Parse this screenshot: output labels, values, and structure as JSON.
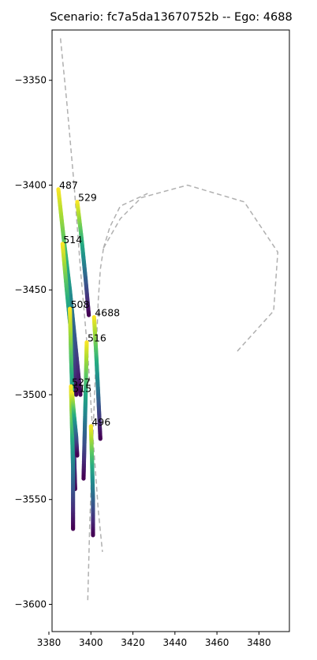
{
  "chart_data": {
    "type": "scatter",
    "title": "Scenario: fc7a5da13670752b -- Ego: 4688",
    "xlabel": "",
    "ylabel": "",
    "xlim": [
      3381.5,
      3494.5
    ],
    "ylim": [
      -3613,
      -3326
    ],
    "xticks": [
      3380,
      3400,
      3420,
      3440,
      3460,
      3480
    ],
    "yticks": [
      -3350,
      -3400,
      -3450,
      -3500,
      -3550,
      -3600
    ],
    "grid": false,
    "colormap": "viridis",
    "map_lines": [
      [
        [
          3385.5,
          -3330
        ],
        [
          3388.5,
          -3360
        ],
        [
          3392,
          -3400
        ],
        [
          3395,
          -3440
        ],
        [
          3398.5,
          -3480
        ],
        [
          3401,
          -3520
        ],
        [
          3403.5,
          -3555
        ],
        [
          3405.5,
          -3575
        ]
      ],
      [
        [
          3398.5,
          -3598
        ],
        [
          3399.5,
          -3560
        ],
        [
          3401,
          -3520
        ],
        [
          3402.5,
          -3480
        ],
        [
          3403.5,
          -3455
        ],
        [
          3404.5,
          -3440
        ],
        [
          3406,
          -3430
        ]
      ],
      [
        [
          3406,
          -3430
        ],
        [
          3409,
          -3420
        ],
        [
          3414,
          -3410
        ],
        [
          3427,
          -3404
        ]
      ],
      [
        [
          3406,
          -3430
        ],
        [
          3414,
          -3416
        ],
        [
          3424,
          -3406
        ],
        [
          3446,
          -3400
        ],
        [
          3473,
          -3408
        ],
        [
          3489,
          -3432
        ],
        [
          3487,
          -3460
        ],
        [
          3469,
          -3480
        ]
      ]
    ],
    "agents": [
      {
        "id": "487",
        "x": [
          3384.5,
          3387.0,
          3390.0,
          3392.5,
          3395.0
        ],
        "y": [
          -3402,
          -3425,
          -3450,
          -3475,
          -3500
        ]
      },
      {
        "id": "529",
        "x": [
          3393.5,
          3395.5,
          3397.5,
          3399.0
        ],
        "y": [
          -3408,
          -3425,
          -3445,
          -3462
        ]
      },
      {
        "id": "514",
        "x": [
          3386.5,
          3388.5,
          3391.0,
          3393.0
        ],
        "y": [
          -3428,
          -3450,
          -3475,
          -3500
        ]
      },
      {
        "id": "508",
        "x": [
          3390.0,
          3390.5,
          3391.5,
          3392.5
        ],
        "y": [
          -3459,
          -3480,
          -3510,
          -3545
        ]
      },
      {
        "id": "4688",
        "x": [
          3401.5,
          3402.5,
          3403.5,
          3404.5
        ],
        "y": [
          -3463,
          -3480,
          -3500,
          -3521
        ]
      },
      {
        "id": "516",
        "x": [
          3398.0,
          3397.5,
          3397.0,
          3396.5
        ],
        "y": [
          -3475,
          -3500,
          -3520,
          -3540
        ]
      },
      {
        "id": "527",
        "x": [
          3390.5,
          3391.0,
          3391.5,
          3391.5
        ],
        "y": [
          -3496,
          -3515,
          -3535,
          -3564
        ]
      },
      {
        "id": "515",
        "x": [
          3391.0,
          3392.0,
          3393.0,
          3393.5
        ],
        "y": [
          -3499,
          -3510,
          -3520,
          -3529
        ]
      },
      {
        "id": "496",
        "x": [
          3400.0,
          3400.5,
          3401.0,
          3401.0
        ],
        "y": [
          -3515,
          -3530,
          -3550,
          -3567
        ]
      }
    ]
  }
}
